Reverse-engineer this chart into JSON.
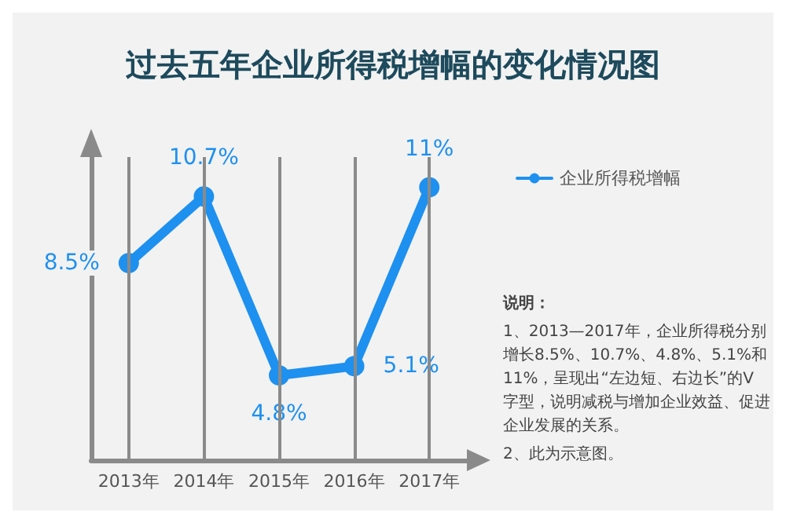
{
  "chart_data": {
    "type": "line",
    "title": "过去五年企业所得税增幅的变化情况图",
    "categories": [
      "2013年",
      "2014年",
      "2015年",
      "2016年",
      "2017年"
    ],
    "series": [
      {
        "name": "企业所得税增幅",
        "color": "#1e90ef",
        "values": [
          8.5,
          10.7,
          4.8,
          5.1,
          11
        ],
        "value_labels": [
          "8.5%",
          "10.7%",
          "4.8%",
          "5.1%",
          "11%"
        ]
      }
    ],
    "annotations": [
      "说明：",
      "1、2013—2017年，企业所得税分别增长8.5%、10.7%、4.8%、5.1%和11%，呈现出“左边短、右边长”的V字型，说明减税与增加企业效益、促进企业发展的关系。",
      "2、此为示意图。"
    ],
    "grid": "x",
    "legend": "top right",
    "marker": "circle",
    "line_style": "solid",
    "tick_labels": "x"
  }
}
